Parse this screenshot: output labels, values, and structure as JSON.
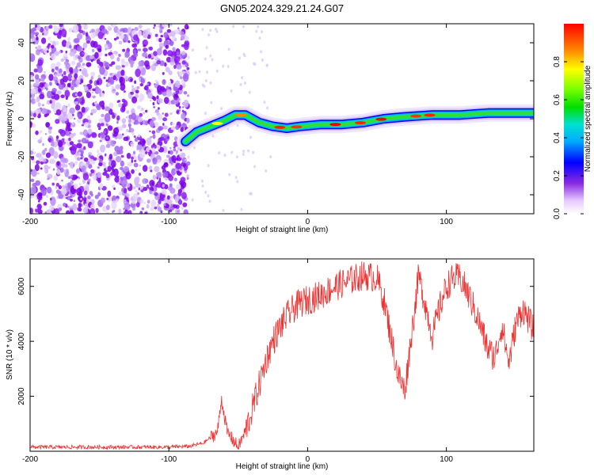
{
  "title": "GN05.2024.329.21.24.G07",
  "chart_data": [
    {
      "type": "heatmap",
      "xlabel": "Height of straight line (km)",
      "ylabel": "Frequency (Hz)",
      "xlim": [
        -200,
        163
      ],
      "ylim": [
        -50,
        50
      ],
      "x_ticks": [
        -200,
        -100,
        0,
        100
      ],
      "y_ticks": [
        -40,
        -20,
        0,
        20,
        40
      ],
      "noise_region_x": [
        -200,
        -86
      ],
      "ridge": [
        {
          "x": -88,
          "y": -12
        },
        {
          "x": -80,
          "y": -7
        },
        {
          "x": -70,
          "y": -4
        },
        {
          "x": -60,
          "y": -1
        },
        {
          "x": -52,
          "y": 2
        },
        {
          "x": -45,
          "y": 2
        },
        {
          "x": -35,
          "y": -2
        },
        {
          "x": -25,
          "y": -4
        },
        {
          "x": -15,
          "y": -5
        },
        {
          "x": -5,
          "y": -4
        },
        {
          "x": 10,
          "y": -3
        },
        {
          "x": 25,
          "y": -3
        },
        {
          "x": 40,
          "y": -2
        },
        {
          "x": 55,
          "y": 0
        },
        {
          "x": 70,
          "y": 1
        },
        {
          "x": 90,
          "y": 2
        },
        {
          "x": 110,
          "y": 2
        },
        {
          "x": 130,
          "y": 3
        },
        {
          "x": 163,
          "y": 3
        }
      ],
      "colorbar": {
        "label": "Normalized spectral amplitude",
        "range": [
          0,
          1
        ],
        "ticks": [
          "0.0",
          "0.2",
          "0.4",
          "0.6",
          "0.8"
        ]
      }
    },
    {
      "type": "line",
      "xlabel": "Height of straight line (km)",
      "ylabel": "SNR (10 * v/v)",
      "xlim": [
        -200,
        163
      ],
      "ylim": [
        0,
        7000
      ],
      "x_ticks": [
        -200,
        -100,
        0,
        100
      ],
      "y_ticks": [
        2000,
        4000,
        6000
      ],
      "series": [
        {
          "color": "#ee3333",
          "points": [
            [
              -200,
              150
            ],
            [
              -150,
              150
            ],
            [
              -100,
              150
            ],
            [
              -85,
              180
            ],
            [
              -75,
              300
            ],
            [
              -65,
              700
            ],
            [
              -62,
              1900
            ],
            [
              -58,
              700
            ],
            [
              -50,
              150
            ],
            [
              -45,
              700
            ],
            [
              -40,
              1500
            ],
            [
              -35,
              2400
            ],
            [
              -30,
              3300
            ],
            [
              -25,
              4000
            ],
            [
              -20,
              4500
            ],
            [
              -15,
              4900
            ],
            [
              -10,
              5200
            ],
            [
              -5,
              5400
            ],
            [
              0,
              5500
            ],
            [
              10,
              5700
            ],
            [
              20,
              6000
            ],
            [
              30,
              6200
            ],
            [
              40,
              6400
            ],
            [
              50,
              6300
            ],
            [
              55,
              5500
            ],
            [
              60,
              4200
            ],
            [
              65,
              2800
            ],
            [
              70,
              2200
            ],
            [
              75,
              4300
            ],
            [
              80,
              6400
            ],
            [
              85,
              5300
            ],
            [
              90,
              4200
            ],
            [
              95,
              5200
            ],
            [
              100,
              6000
            ],
            [
              105,
              6300
            ],
            [
              110,
              6300
            ],
            [
              115,
              5800
            ],
            [
              120,
              5200
            ],
            [
              125,
              4500
            ],
            [
              130,
              3700
            ],
            [
              135,
              3400
            ],
            [
              140,
              4600
            ],
            [
              145,
              3200
            ],
            [
              150,
              4600
            ],
            [
              155,
              5200
            ],
            [
              160,
              4700
            ],
            [
              163,
              4400
            ]
          ]
        }
      ]
    }
  ]
}
